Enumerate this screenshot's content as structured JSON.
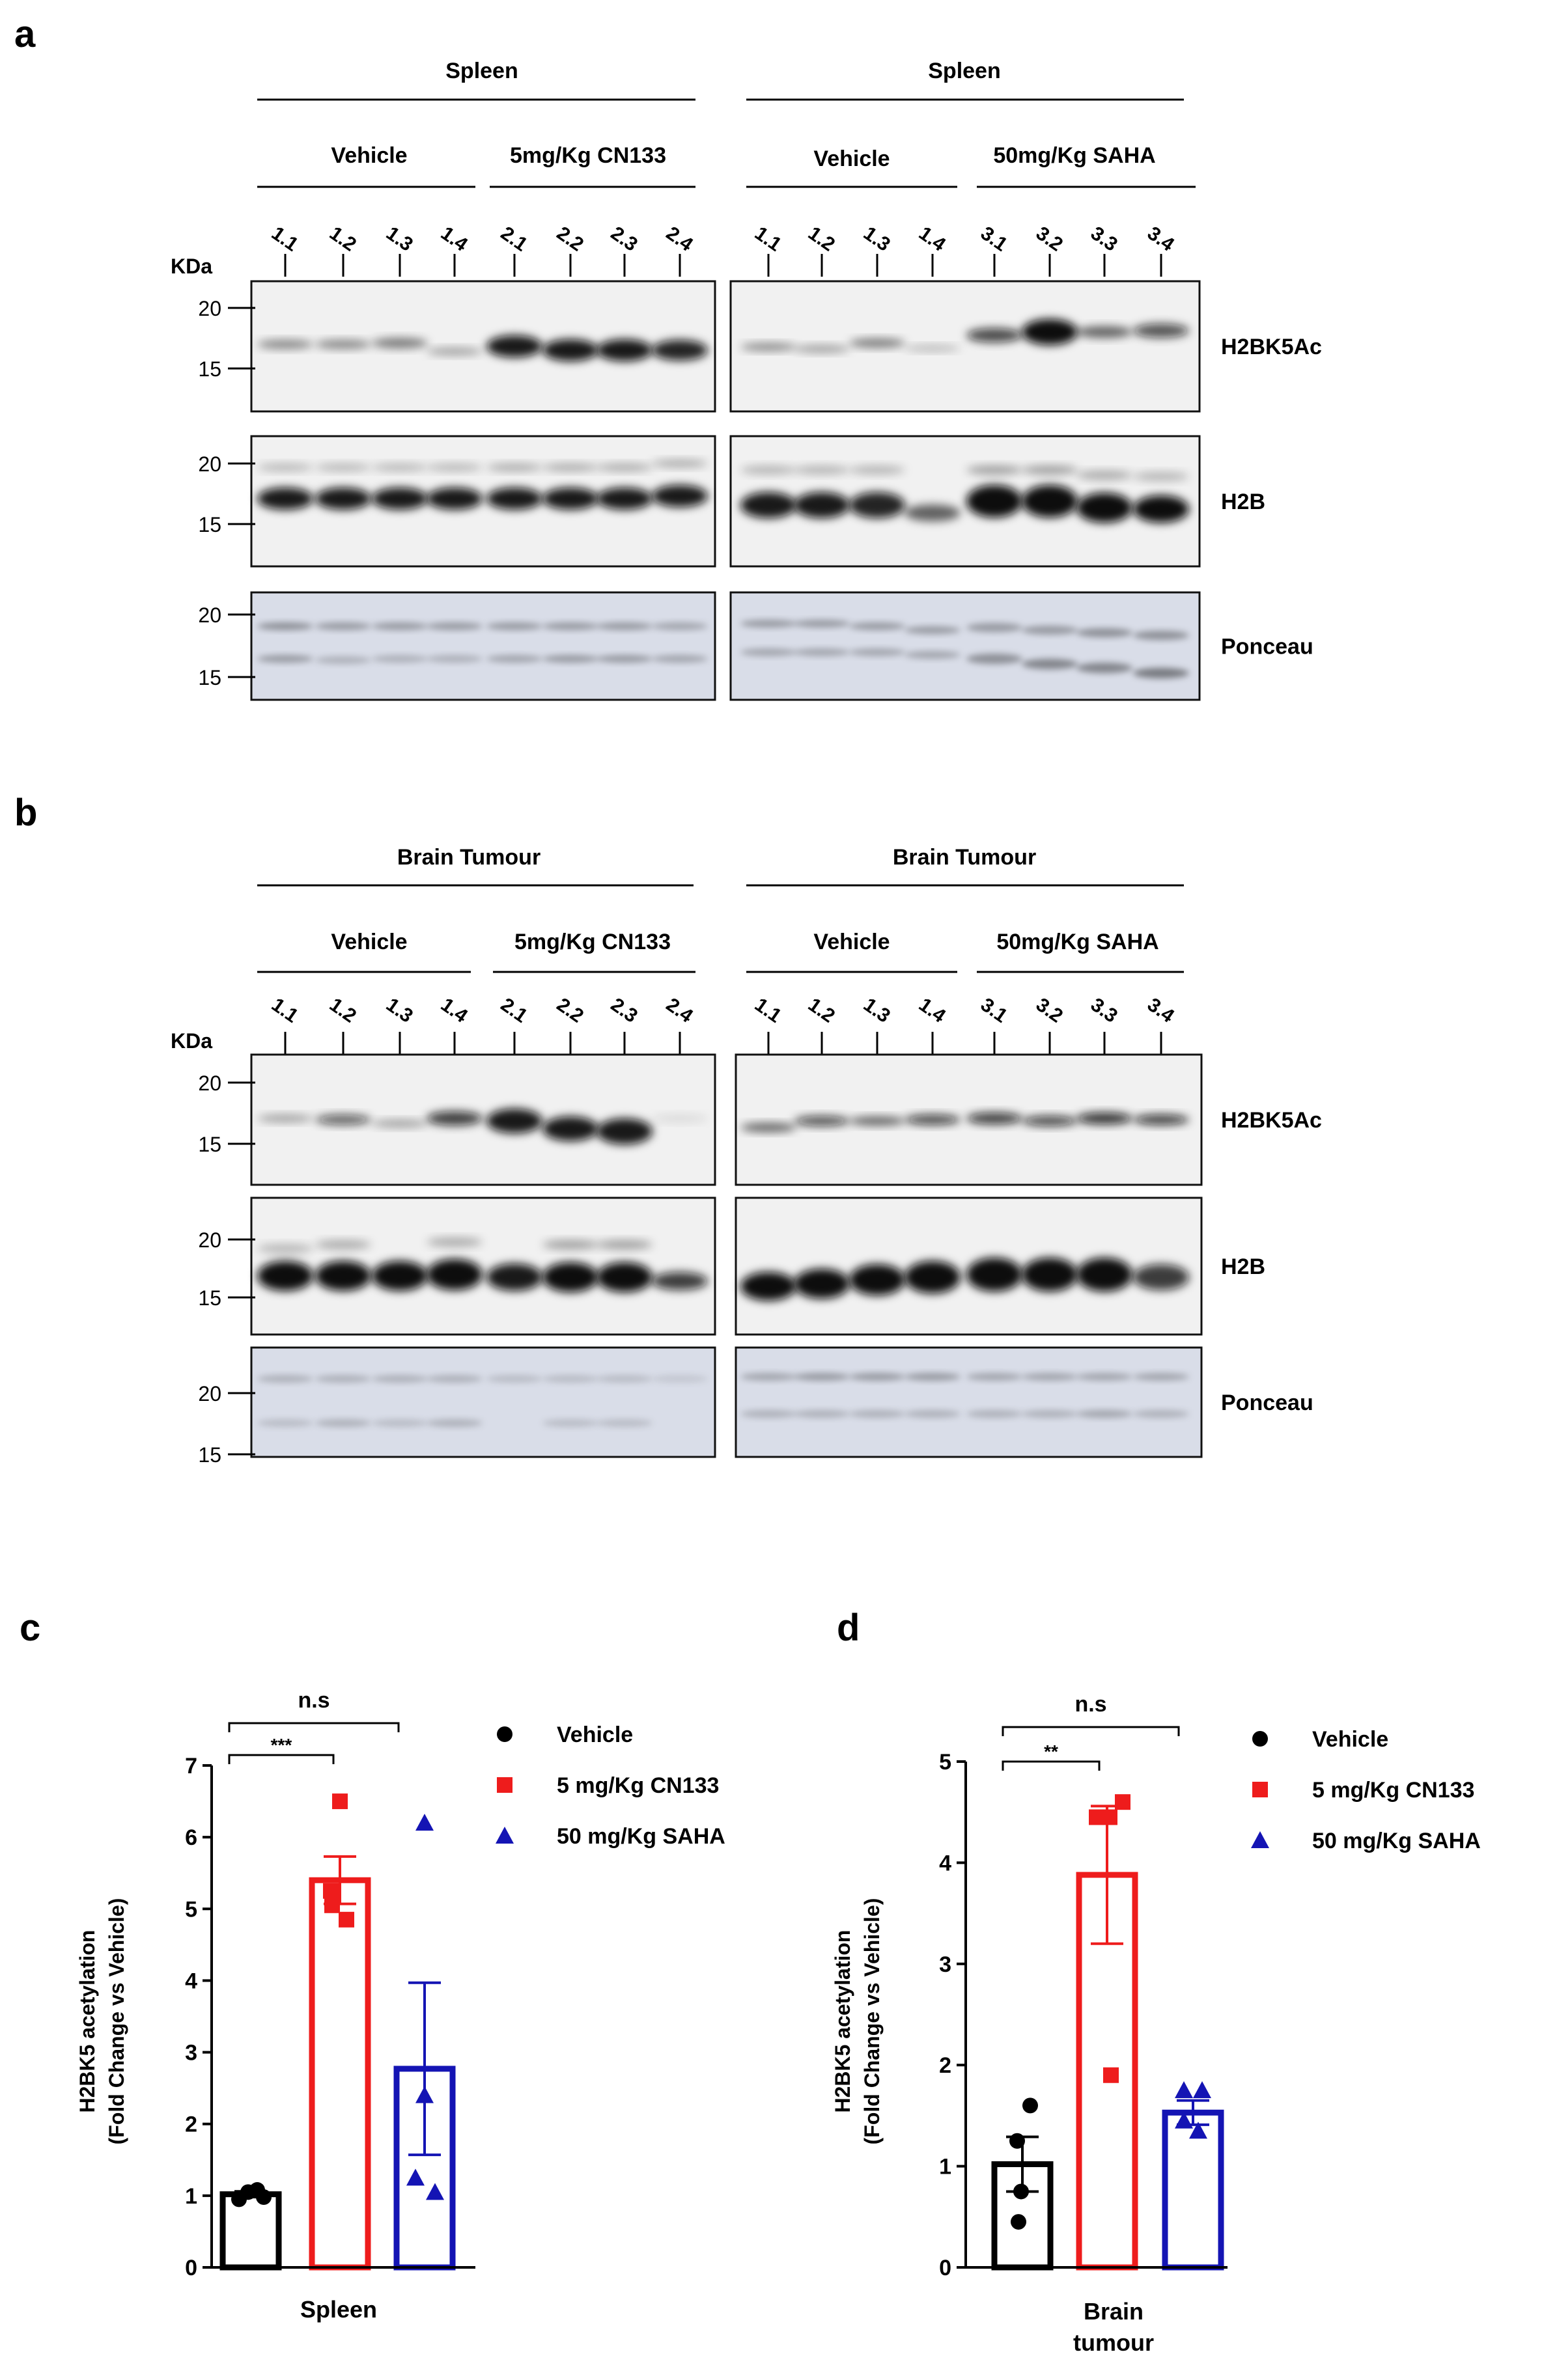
{
  "panel_a": {
    "letter": "a",
    "tissue_left": "Spleen",
    "tissue_right": "Spleen",
    "group_vehicle": "Vehicle",
    "group_cn133": "5mg/Kg CN133",
    "group_vehicle_r": "Vehicle",
    "group_saha": "50mg/Kg SAHA",
    "lanes_left": [
      "1.1",
      "1.2",
      "1.3",
      "1.4",
      "2.1",
      "2.2",
      "2.3",
      "2.4"
    ],
    "lanes_right": [
      "1.1",
      "1.2",
      "1.3",
      "1.4",
      "3.1",
      "3.2",
      "3.3",
      "3.4"
    ],
    "kda_label": "KDa",
    "markers": [
      "20",
      "15"
    ],
    "blots": [
      "H2BK5Ac",
      "H2B",
      "Ponceau"
    ]
  },
  "panel_b": {
    "letter": "b",
    "tissue_left": "Brain Tumour",
    "tissue_right": "Brain Tumour",
    "group_vehicle": "Vehicle",
    "group_cn133": "5mg/Kg CN133",
    "group_vehicle_r": "Vehicle",
    "group_saha": "50mg/Kg SAHA",
    "lanes_left": [
      "1.1",
      "1.2",
      "1.3",
      "1.4",
      "2.1",
      "2.2",
      "2.3",
      "2.4"
    ],
    "lanes_right": [
      "1.1",
      "1.2",
      "1.3",
      "1.4",
      "3.1",
      "3.2",
      "3.3",
      "3.4"
    ],
    "kda_label": "KDa",
    "markers": [
      "20",
      "15"
    ],
    "blots": [
      "H2BK5Ac",
      "H2B",
      "Ponceau"
    ]
  },
  "chart_data": [
    {
      "panel": "c",
      "type": "bar",
      "categories": [
        "Vehicle",
        "5 mg/Kg CN133",
        "50 mg/Kg SAHA"
      ],
      "values": [
        1.02,
        5.4,
        2.77
      ],
      "sem": [
        0.04,
        0.33,
        1.2
      ],
      "points": [
        [
          0.95,
          1.05,
          1.08,
          0.98
        ],
        [
          6.5,
          5.25,
          5.05,
          4.85
        ],
        [
          6.2,
          2.4,
          1.25,
          1.05
        ]
      ],
      "colors": [
        "#000000",
        "#ee1c1c",
        "#1414b4"
      ],
      "markers": [
        "circle",
        "square",
        "triangle"
      ],
      "ylabel_1": "H2BK5 acetylation",
      "ylabel_2": "(Fold Change vs Vehicle)",
      "xlabel": "Spleen",
      "ylim": [
        0,
        7
      ],
      "yticks": [
        0,
        1,
        2,
        3,
        4,
        5,
        6,
        7
      ],
      "sig_inner": "***",
      "sig_outer": "n.s",
      "legend": [
        "Vehicle",
        "5 mg/Kg CN133",
        "50 mg/Kg SAHA"
      ]
    },
    {
      "panel": "d",
      "type": "bar",
      "categories": [
        "Vehicle",
        "5 mg/Kg CN133",
        "50 mg/Kg SAHA"
      ],
      "values": [
        1.02,
        3.88,
        1.53
      ],
      "sem": [
        0.27,
        0.68,
        0.12
      ],
      "points": [
        [
          1.6,
          1.25,
          0.75,
          0.45
        ],
        [
          4.6,
          4.45,
          4.45,
          1.9
        ],
        [
          1.75,
          1.75,
          1.45,
          1.35
        ]
      ],
      "colors": [
        "#000000",
        "#ee1c1c",
        "#1414b4"
      ],
      "markers": [
        "circle",
        "square",
        "triangle"
      ],
      "ylabel_1": "H2BK5 acetylation",
      "ylabel_2": "(Fold Change vs Vehicle)",
      "xlabel_1": "Brain",
      "xlabel_2": "tumour",
      "ylim": [
        0,
        5
      ],
      "yticks": [
        0,
        1,
        2,
        3,
        4,
        5
      ],
      "sig_inner": "**",
      "sig_outer": "n.s",
      "legend": [
        "Vehicle",
        "5 mg/Kg CN133",
        "50 mg/Kg SAHA"
      ]
    }
  ]
}
